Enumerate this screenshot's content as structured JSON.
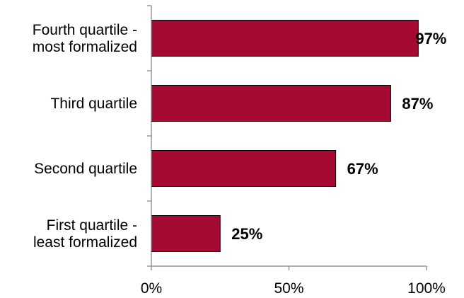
{
  "chart_data": {
    "type": "bar",
    "orientation": "horizontal",
    "title": "",
    "xlabel": "",
    "ylabel": "",
    "categories": [
      [
        "Fourth quartile -",
        "most formalized"
      ],
      [
        "Third quartile"
      ],
      [
        "Second quartile"
      ],
      [
        "First quartile -",
        "least formalized"
      ]
    ],
    "values": [
      97,
      87,
      67,
      25
    ],
    "value_labels": [
      "97%",
      "87%",
      "67%",
      "25%"
    ],
    "xlim": [
      0,
      100
    ],
    "x_ticks": [
      0,
      50,
      100
    ],
    "x_tick_labels": [
      "0%",
      "50%",
      "100%"
    ],
    "grid": false,
    "legend": "none",
    "colors": {
      "bar_fill": "#a50a33",
      "bar_stroke": "#000000",
      "axis": "#7f7f7f"
    }
  }
}
